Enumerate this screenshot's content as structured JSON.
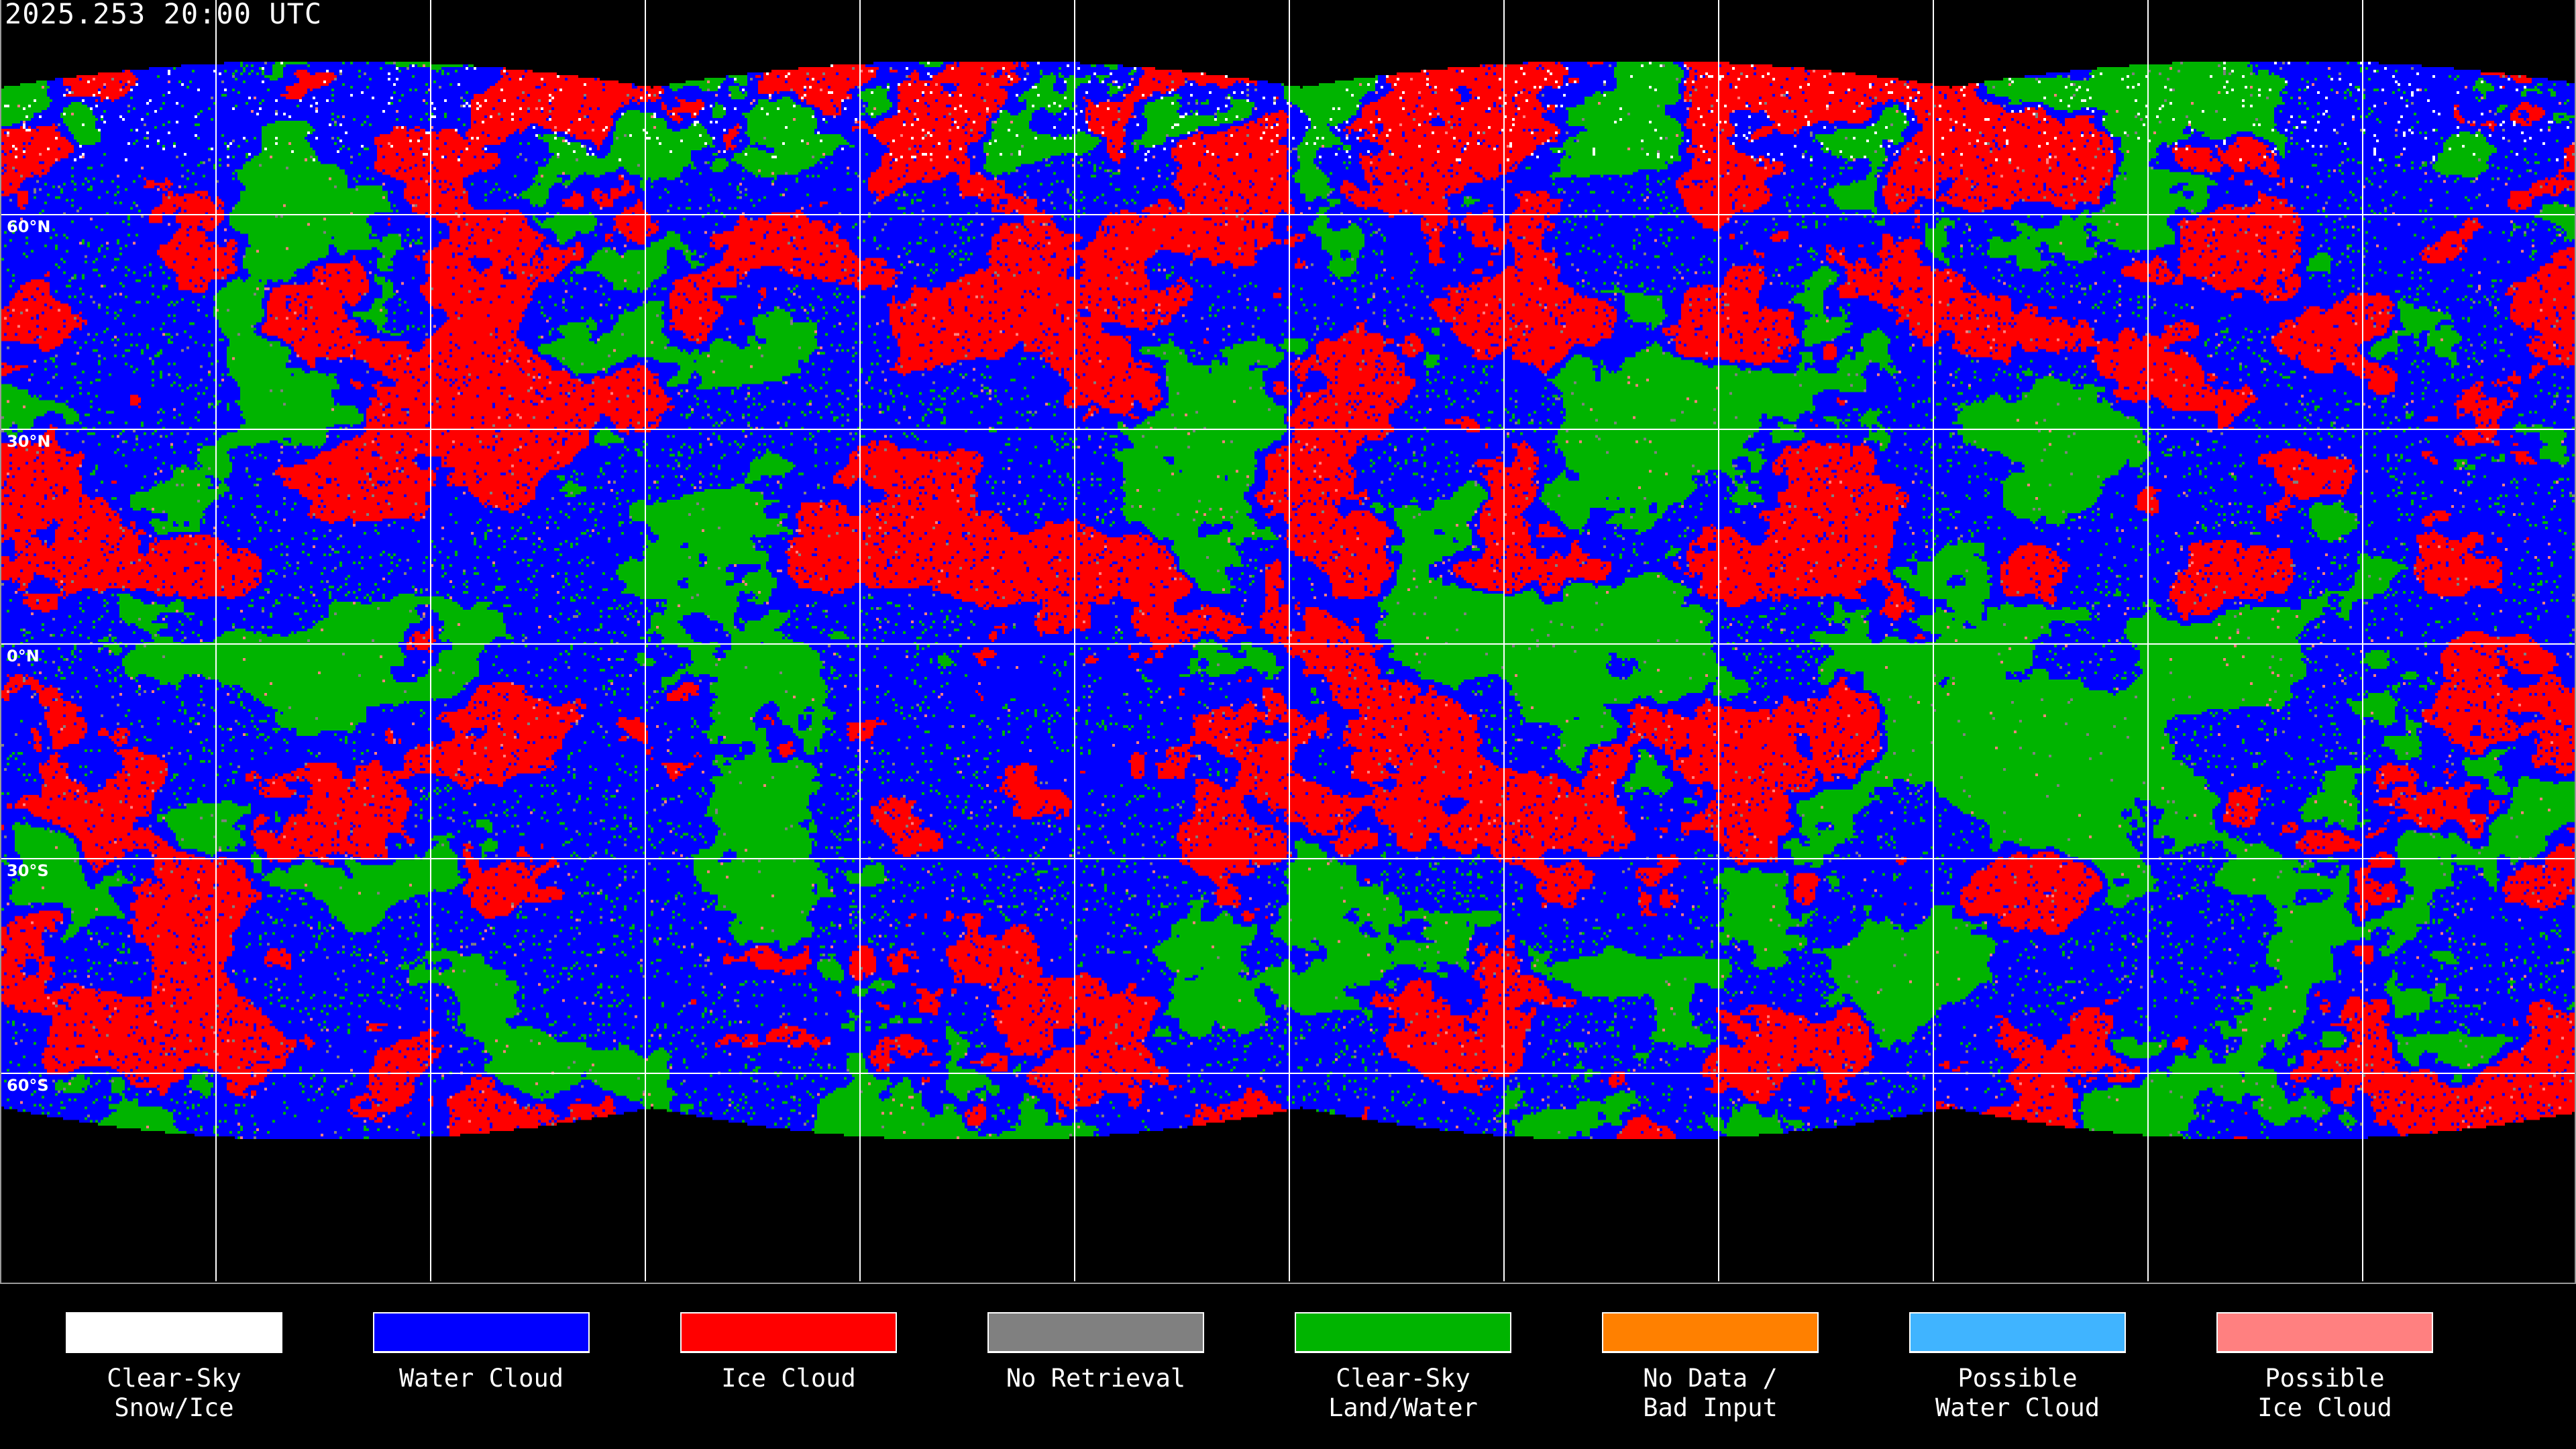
{
  "title": "2025.253 20:00 UTC",
  "map": {
    "latitude_labels": [
      "60°N",
      "30°N",
      "0°N",
      "30°S",
      "60°S"
    ],
    "gridline_color": "#ffffff",
    "background_color": "#000000"
  },
  "legend": [
    {
      "line1": "Clear-Sky",
      "line2": "Snow/Ice",
      "color": "#ffffff"
    },
    {
      "line1": "Water Cloud",
      "line2": "",
      "color": "#0000ff"
    },
    {
      "line1": "Ice Cloud",
      "line2": "",
      "color": "#ff0000"
    },
    {
      "line1": "No Retrieval",
      "line2": "",
      "color": "#808080"
    },
    {
      "line1": "Clear-Sky",
      "line2": "Land/Water",
      "color": "#00b400"
    },
    {
      "line1": "No Data /",
      "line2": "Bad Input",
      "color": "#ff8000"
    },
    {
      "line1": "Possible",
      "line2": "Water Cloud",
      "color": "#40b4ff"
    },
    {
      "line1": "Possible",
      "line2": "Ice Cloud",
      "color": "#ff8080"
    }
  ]
}
